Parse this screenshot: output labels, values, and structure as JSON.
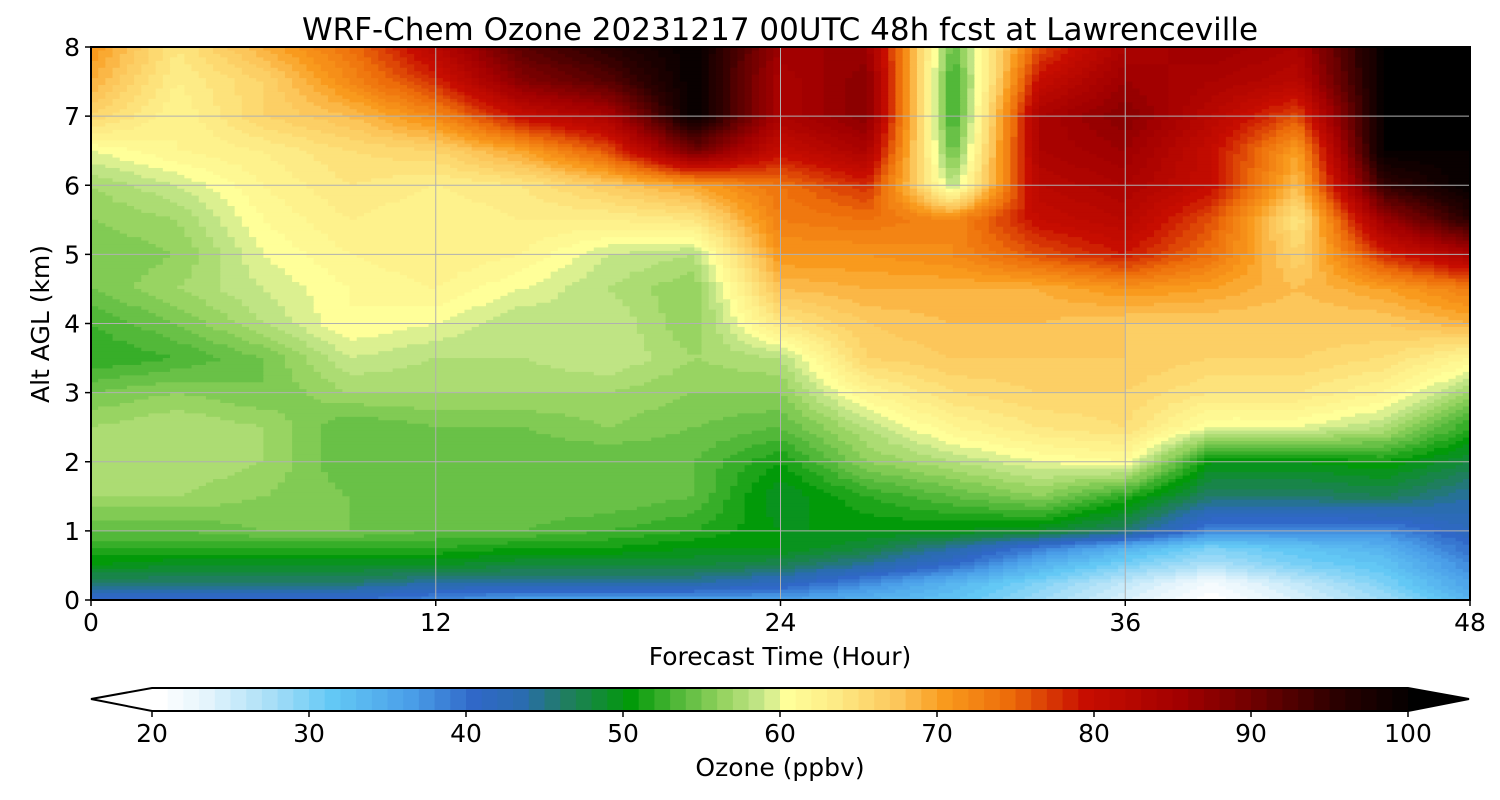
{
  "chart_data": {
    "type": "heatmap",
    "title": "WRF-Chem Ozone  20231217 00UTC 48h fcst at Lawrenceville",
    "xlabel": "Forecast Time (Hour)",
    "ylabel": "Alt AGL (km)",
    "xlim": [
      0,
      48
    ],
    "ylim": [
      0,
      8
    ],
    "x_ticks": [
      "0",
      "12",
      "24",
      "36",
      "48"
    ],
    "y_ticks": [
      "0",
      "1",
      "2",
      "3",
      "4",
      "5",
      "6",
      "7",
      "8"
    ],
    "grid": true,
    "colorbar": {
      "label": "Ozone  (ppbv)",
      "min": 20,
      "max": 100,
      "extend": "both",
      "ticks": [
        "20",
        "30",
        "40",
        "50",
        "60",
        "70",
        "80",
        "90",
        "100"
      ],
      "stops": [
        {
          "v": 20,
          "c": "#ffffff"
        },
        {
          "v": 23,
          "c": "#e4f4fc"
        },
        {
          "v": 27,
          "c": "#a9dff7"
        },
        {
          "v": 31,
          "c": "#63c8f5"
        },
        {
          "v": 36,
          "c": "#4a9ee8"
        },
        {
          "v": 40,
          "c": "#3068c8"
        },
        {
          "v": 43,
          "c": "#2a6cb0"
        },
        {
          "v": 46,
          "c": "#1f7e5e"
        },
        {
          "v": 50,
          "c": "#029a09"
        },
        {
          "v": 53,
          "c": "#52b839"
        },
        {
          "v": 56,
          "c": "#98d462"
        },
        {
          "v": 58.5,
          "c": "#c9e88c"
        },
        {
          "v": 60,
          "c": "#ffff99"
        },
        {
          "v": 63,
          "c": "#fdeb86"
        },
        {
          "v": 67,
          "c": "#fcc65a"
        },
        {
          "v": 70,
          "c": "#f99a1d"
        },
        {
          "v": 74,
          "c": "#ed6d0a"
        },
        {
          "v": 79,
          "c": "#c70d00"
        },
        {
          "v": 85,
          "c": "#a20000"
        },
        {
          "v": 90,
          "c": "#6b0000"
        },
        {
          "v": 95,
          "c": "#2b0000"
        },
        {
          "v": 100,
          "c": "#000000"
        }
      ]
    },
    "x_hours": [
      0,
      3,
      6,
      9,
      12,
      15,
      18,
      21,
      24,
      27,
      30,
      33,
      36,
      39,
      42,
      45,
      48
    ],
    "y_km": [
      0,
      0.25,
      0.5,
      0.75,
      1,
      1.5,
      2,
      2.5,
      3,
      3.5,
      4,
      4.5,
      5,
      5.5,
      6,
      6.5,
      7,
      7.5,
      8
    ],
    "values": [
      [
        40,
        40,
        40,
        40,
        38,
        36,
        36,
        36,
        36,
        34,
        32,
        28,
        24,
        20,
        24,
        28,
        34
      ],
      [
        46,
        46,
        46,
        46,
        44,
        44,
        44,
        44,
        42,
        38,
        34,
        30,
        26,
        22,
        26,
        30,
        36
      ],
      [
        50,
        49,
        49,
        49,
        49,
        48,
        48,
        48,
        47,
        44,
        40,
        34,
        30,
        27,
        30,
        32,
        38
      ],
      [
        52,
        52,
        52,
        52,
        52,
        51,
        51,
        50,
        50,
        48,
        44,
        39,
        34,
        30,
        32,
        34,
        40
      ],
      [
        54,
        54,
        55,
        55,
        54,
        54,
        53,
        52,
        50,
        50,
        50,
        49,
        46,
        38,
        38,
        38,
        42
      ],
      [
        57,
        57,
        56,
        55,
        55,
        55,
        55,
        54,
        49,
        52,
        54,
        56,
        52,
        46,
        46,
        47,
        44
      ],
      [
        58,
        58,
        57,
        54,
        54,
        54,
        54,
        54,
        51,
        56,
        58,
        60,
        61,
        50,
        50,
        51,
        48
      ],
      [
        57,
        58,
        57,
        54,
        55,
        55,
        56,
        55,
        54,
        58,
        62,
        64,
        65,
        60,
        60,
        58,
        52
      ],
      [
        55,
        56,
        55,
        57,
        57,
        57,
        57,
        56,
        56,
        62,
        65,
        66,
        66,
        64,
        64,
        62,
        57
      ],
      [
        52,
        53,
        55,
        59,
        58,
        58,
        59,
        57,
        58,
        66,
        67,
        67,
        67,
        66,
        66,
        65,
        62
      ],
      [
        53,
        55,
        58,
        61,
        60,
        58,
        59,
        56,
        64,
        67,
        68,
        68,
        67,
        67,
        67,
        67,
        69
      ],
      [
        55,
        57,
        59,
        61,
        62,
        60,
        58,
        56,
        68,
        69,
        69,
        69,
        71,
        70,
        68,
        70,
        73
      ],
      [
        55,
        56,
        60,
        62,
        63,
        62,
        59,
        58,
        71,
        71,
        72,
        76,
        79,
        74,
        66,
        78,
        84
      ],
      [
        56,
        57,
        61,
        63,
        62,
        63,
        63,
        64,
        73,
        74,
        72,
        80,
        82,
        76,
        64,
        86,
        96
      ],
      [
        57,
        59,
        62,
        64,
        63,
        64,
        67,
        70,
        74,
        78,
        58,
        82,
        84,
        80,
        68,
        95,
        100
      ],
      [
        60,
        62,
        63,
        65,
        66,
        70,
        76,
        90,
        80,
        84,
        54,
        84,
        86,
        80,
        70,
        100,
        100
      ],
      [
        66,
        62,
        66,
        68,
        72,
        80,
        84,
        100,
        84,
        88,
        52,
        84,
        88,
        82,
        76,
        100,
        100
      ],
      [
        69,
        63,
        66,
        72,
        78,
        88,
        92,
        100,
        84,
        88,
        52,
        80,
        86,
        84,
        82,
        100,
        100
      ],
      [
        71,
        64,
        69,
        74,
        82,
        92,
        96,
        100,
        86,
        86,
        54,
        76,
        84,
        86,
        84,
        100,
        100
      ]
    ]
  }
}
